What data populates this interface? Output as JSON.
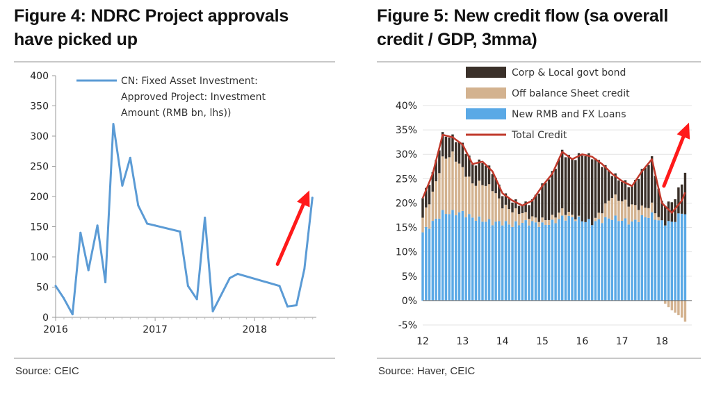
{
  "figures": {
    "left": {
      "title_line1": "Figure 4: NDRC Project approvals",
      "title_line2": "have picked up",
      "source": "Source:  CEIC"
    },
    "right": {
      "title_line1": "Figure 5: New credit flow (sa overall",
      "title_line2": "credit / GDP, 3mma)",
      "source": "Source:  Haver, CEIC"
    }
  },
  "chart_data": [
    {
      "type": "line",
      "title": "Figure 4: NDRC Project approvals have picked up",
      "xlabel": "",
      "ylabel": "",
      "ylim": [
        0,
        400
      ],
      "yticks": [
        0,
        50,
        100,
        150,
        200,
        250,
        300,
        350,
        400
      ],
      "xlim": [
        2016.0,
        2018.62
      ],
      "xticks": [
        2016,
        2017,
        2018
      ],
      "xtick_labels": [
        "2016",
        "2017",
        "2018"
      ],
      "legend": [
        "CN: Fixed Asset Investment:",
        "Approved Project: Investment",
        "Amount (RMB bn, lhs))"
      ],
      "series": [
        {
          "name": "CN: Fixed Asset Investment: Approved Project: Investment Amount (RMB bn, lhs))",
          "color": "#5b9bd5",
          "x": [
            2016.0,
            2016.08,
            2016.17,
            2016.25,
            2016.33,
            2016.42,
            2016.5,
            2016.58,
            2016.67,
            2016.75,
            2016.83,
            2016.92,
            2017.0,
            2017.25,
            2017.33,
            2017.42,
            2017.5,
            2017.58,
            2017.75,
            2017.83,
            2018.25,
            2018.33,
            2018.42,
            2018.5,
            2018.58
          ],
          "values": [
            52,
            32,
            5,
            140,
            78,
            152,
            58,
            320,
            218,
            264,
            185,
            155,
            152,
            142,
            52,
            30,
            165,
            10,
            65,
            72,
            52,
            18,
            20,
            80,
            198
          ]
        }
      ],
      "annotations": [
        {
          "type": "arrow",
          "color": "#ff1a1a",
          "from": [
            2018.23,
            88
          ],
          "to": [
            2018.55,
            210
          ]
        }
      ]
    },
    {
      "type": "bar",
      "stacked": true,
      "title": "Figure 5: New credit flow (sa overall credit / GDP, 3mma)",
      "xlabel": "",
      "ylabel": "",
      "ylim": [
        -0.05,
        0.4
      ],
      "yticks": [
        -0.05,
        0,
        0.05,
        0.1,
        0.15,
        0.2,
        0.25,
        0.3,
        0.35,
        0.4
      ],
      "ytick_labels": [
        "-5%",
        "0%",
        "5%",
        "10%",
        "15%",
        "20%",
        "25%",
        "30%",
        "35%",
        "40%"
      ],
      "xlim": [
        2012.0,
        2018.75
      ],
      "xtick_labels": [
        "12",
        "13",
        "14",
        "15",
        "16",
        "17",
        "18"
      ],
      "xtick_positions": [
        2012,
        2013,
        2014,
        2015,
        2016,
        2017,
        2018
      ],
      "legend": [
        "Corp & Local govt bond",
        "Off balance Sheet credit",
        "New RMB and FX Loans",
        "Total Credit"
      ],
      "series_colors": {
        "loans": "#5aa9e6",
        "offbalance": "#d3b28f",
        "bond": "#3a3029",
        "total": "#c0392b"
      },
      "x": [
        2012.0,
        2012.25,
        2012.5,
        2012.75,
        2013.0,
        2013.25,
        2013.5,
        2013.75,
        2014.0,
        2014.25,
        2014.5,
        2014.75,
        2015.0,
        2015.25,
        2015.5,
        2015.75,
        2016.0,
        2016.25,
        2016.5,
        2016.75,
        2017.0,
        2017.25,
        2017.5,
        2017.75,
        2018.0,
        2018.25,
        2018.5,
        2018.6
      ],
      "series": [
        {
          "name": "New RMB and FX Loans",
          "values": [
            0.14,
            0.16,
            0.18,
            0.18,
            0.18,
            0.17,
            0.165,
            0.16,
            0.16,
            0.155,
            0.16,
            0.16,
            0.155,
            0.16,
            0.17,
            0.17,
            0.165,
            0.16,
            0.165,
            0.17,
            0.165,
            0.16,
            0.17,
            0.175,
            0.16,
            0.16,
            0.18,
            0.18
          ]
        },
        {
          "name": "Off balance Sheet credit",
          "values": [
            0.03,
            0.06,
            0.11,
            0.12,
            0.09,
            0.07,
            0.075,
            0.07,
            0.035,
            0.03,
            0.02,
            0.01,
            0.01,
            0.01,
            0.015,
            0.005,
            0.0,
            0.0,
            0.02,
            0.045,
            0.04,
            0.035,
            0.02,
            0.02,
            0.0,
            -0.02,
            -0.035,
            -0.045
          ]
        },
        {
          "name": "Corp & Local govt bond",
          "values": [
            0.04,
            0.04,
            0.05,
            0.035,
            0.05,
            0.04,
            0.045,
            0.035,
            0.025,
            0.02,
            0.015,
            0.035,
            0.07,
            0.09,
            0.12,
            0.115,
            0.135,
            0.135,
            0.095,
            0.045,
            0.04,
            0.04,
            0.075,
            0.095,
            0.04,
            0.04,
            0.06,
            0.09
          ]
        }
      ],
      "line_series": {
        "name": "Total Credit",
        "values": [
          0.21,
          0.26,
          0.34,
          0.335,
          0.32,
          0.28,
          0.285,
          0.265,
          0.22,
          0.205,
          0.195,
          0.205,
          0.235,
          0.26,
          0.305,
          0.29,
          0.3,
          0.295,
          0.28,
          0.26,
          0.245,
          0.235,
          0.265,
          0.29,
          0.2,
          0.18,
          0.205,
          0.225
        ]
      },
      "annotations": [
        {
          "type": "arrow",
          "color": "#ff1a1a",
          "from": [
            2018.05,
            0.235
          ],
          "to": [
            2018.68,
            0.365
          ]
        }
      ]
    }
  ]
}
